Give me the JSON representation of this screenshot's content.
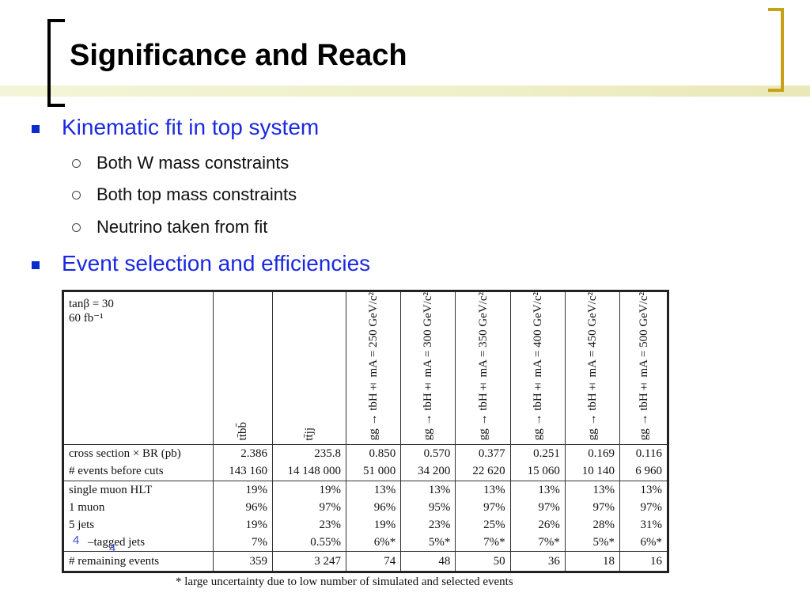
{
  "slide": {
    "title": "Significance and Reach",
    "bullets": [
      {
        "text": "Kinematic fit in top system",
        "sub": [
          "Both W mass constraints",
          "Both top mass constraints",
          "Neutrino taken from fit"
        ]
      },
      {
        "text": "Event selection and efficiencies"
      }
    ],
    "page_numbers": [
      "4",
      "4"
    ]
  },
  "table": {
    "corner": [
      "tanβ = 30",
      "60 fb⁻¹"
    ],
    "columns": [
      "tt̄bb̄",
      "tt̄jj",
      "gg → tbH± mA = 250 GeV/c²",
      "gg → tbH± mA = 300 GeV/c²",
      "gg → tbH± mA = 350 GeV/c²",
      "gg → tbH± mA = 400 GeV/c²",
      "gg → tbH± mA = 450 GeV/c²",
      "gg → tbH± mA = 500 GeV/c²"
    ],
    "section1": [
      {
        "label": "cross section × BR (pb)",
        "values": [
          "2.386",
          "235.8",
          "0.850",
          "0.570",
          "0.377",
          "0.251",
          "0.169",
          "0.116"
        ]
      },
      {
        "label": "# events before cuts",
        "values": [
          "143 160",
          "14 148 000",
          "51 000",
          "34 200",
          "22 620",
          "15 060",
          "10 140",
          "6 960"
        ]
      }
    ],
    "section2": [
      {
        "label": "single muon HLT",
        "values": [
          "19%",
          "19%",
          "13%",
          "13%",
          "13%",
          "13%",
          "13%",
          "13%"
        ]
      },
      {
        "label": "1 muon",
        "values": [
          "96%",
          "97%",
          "96%",
          "95%",
          "97%",
          "97%",
          "97%",
          "97%"
        ]
      },
      {
        "label": "5 jets",
        "values": [
          "19%",
          "23%",
          "19%",
          "23%",
          "25%",
          "26%",
          "28%",
          "31%"
        ]
      },
      {
        "label": "–tagged jets",
        "values": [
          "7%",
          "0.55%",
          "6%*",
          "5%*",
          "7%*",
          "7%*",
          "5%*",
          "6%*"
        ]
      }
    ],
    "section3": [
      {
        "label": "# remaining events",
        "values": [
          "359",
          "3 247",
          "74",
          "48",
          "50",
          "36",
          "18",
          "16"
        ]
      }
    ],
    "footnote": "* large uncertainty due to low number of simulated and selected events"
  },
  "colors": {
    "bullet_blue": "#1a29e0",
    "bracket_gold": "#c8a11a"
  }
}
